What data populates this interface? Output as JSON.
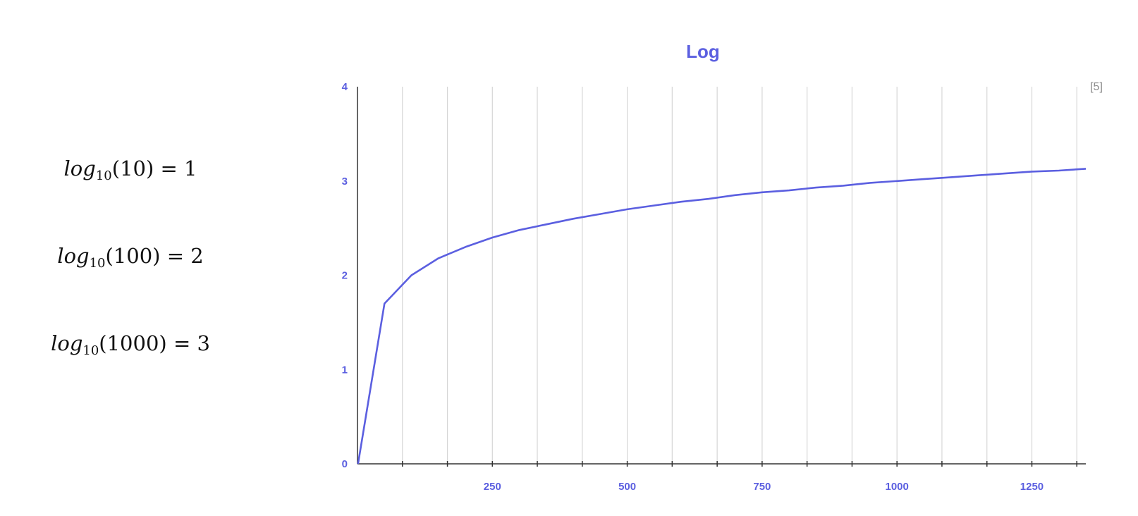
{
  "equations": [
    {
      "fn": "log",
      "base": "10",
      "arg": "(10)",
      "rhs": " = 1"
    },
    {
      "fn": "log",
      "base": "10",
      "arg": "(100)",
      "rhs": " = 2"
    },
    {
      "fn": "log",
      "base": "10",
      "arg": "(1000)",
      "rhs": " = 3"
    }
  ],
  "reference": "[5]",
  "colors": {
    "accent": "#5b5fe0",
    "axis": "#333333",
    "grid": "#d6d6d6",
    "text": "#111111"
  },
  "chart_data": {
    "type": "line",
    "title": "Log",
    "xlabel": "",
    "ylabel": "",
    "xlim": [
      0,
      1350
    ],
    "ylim": [
      0,
      4
    ],
    "xticks": [
      250,
      500,
      750,
      1000,
      1250
    ],
    "yticks": [
      0,
      1,
      2,
      3,
      4
    ],
    "minor_xticks": [
      83.3,
      166.7,
      333.3,
      416.7,
      583.3,
      666.7,
      833.3,
      916.7,
      1083.3,
      1166.7,
      1333.3
    ],
    "grid": true,
    "legend": "none",
    "series": [
      {
        "x": [
          1,
          50,
          100,
          150,
          200,
          250,
          300,
          350,
          400,
          450,
          500,
          550,
          600,
          650,
          700,
          750,
          800,
          850,
          900,
          950,
          1000,
          1050,
          1100,
          1150,
          1200,
          1250,
          1300,
          1350
        ],
        "y": [
          0,
          1.7,
          2.0,
          2.18,
          2.3,
          2.4,
          2.48,
          2.54,
          2.6,
          2.65,
          2.7,
          2.74,
          2.78,
          2.81,
          2.85,
          2.88,
          2.9,
          2.93,
          2.95,
          2.98,
          3.0,
          3.02,
          3.04,
          3.06,
          3.08,
          3.1,
          3.11,
          3.13
        ]
      }
    ]
  }
}
